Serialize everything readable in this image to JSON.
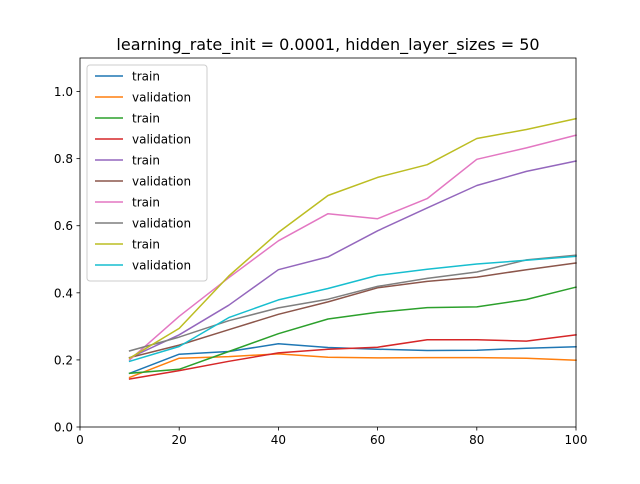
{
  "chart_data": {
    "type": "line",
    "title": "learning_rate_init = 0.0001, hidden_layer_sizes = 50",
    "xlabel": "",
    "ylabel": "",
    "xlim": [
      0,
      100
    ],
    "ylim": [
      0,
      1.1
    ],
    "xticks": [
      0,
      20,
      40,
      60,
      80,
      100
    ],
    "xtick_labels": [
      "0",
      "20",
      "40",
      "60",
      "80",
      "100"
    ],
    "yticks": [
      0.0,
      0.2,
      0.4,
      0.6,
      0.8,
      1.0
    ],
    "ytick_labels": [
      "0.0",
      "0.2",
      "0.4",
      "0.6",
      "0.8",
      "1.0"
    ],
    "grid": false,
    "legend_position": "top-left",
    "x": [
      10,
      20,
      30,
      40,
      50,
      60,
      70,
      80,
      90,
      100
    ],
    "series": [
      {
        "name": "train",
        "color": "#1f77b4",
        "values": [
          0.16,
          0.217,
          0.225,
          0.248,
          0.237,
          0.232,
          0.228,
          0.229,
          0.235,
          0.239
        ]
      },
      {
        "name": "validation",
        "color": "#ff7f0e",
        "values": [
          0.148,
          0.205,
          0.21,
          0.218,
          0.208,
          0.206,
          0.207,
          0.207,
          0.205,
          0.199
        ]
      },
      {
        "name": "train",
        "color": "#2ca02c",
        "values": [
          0.16,
          0.172,
          0.225,
          0.278,
          0.322,
          0.342,
          0.356,
          0.358,
          0.38,
          0.417
        ]
      },
      {
        "name": "validation",
        "color": "#d62728",
        "values": [
          0.143,
          0.168,
          0.196,
          0.221,
          0.232,
          0.238,
          0.26,
          0.26,
          0.256,
          0.275
        ]
      },
      {
        "name": "train",
        "color": "#9467bd",
        "values": [
          0.206,
          0.275,
          0.363,
          0.469,
          0.507,
          0.585,
          0.653,
          0.72,
          0.762,
          0.793
        ]
      },
      {
        "name": "validation",
        "color": "#8c564b",
        "values": [
          0.207,
          0.244,
          0.29,
          0.336,
          0.373,
          0.415,
          0.434,
          0.447,
          0.469,
          0.489
        ]
      },
      {
        "name": "train",
        "color": "#e377c2",
        "values": [
          0.2,
          0.33,
          0.445,
          0.555,
          0.636,
          0.621,
          0.681,
          0.798,
          0.832,
          0.87
        ]
      },
      {
        "name": "validation",
        "color": "#7f7f7f",
        "values": [
          0.227,
          0.268,
          0.317,
          0.355,
          0.381,
          0.419,
          0.443,
          0.462,
          0.498,
          0.512
        ]
      },
      {
        "name": "train",
        "color": "#bcbd22",
        "values": [
          0.205,
          0.294,
          0.45,
          0.58,
          0.69,
          0.744,
          0.782,
          0.86,
          0.887,
          0.919
        ]
      },
      {
        "name": "validation",
        "color": "#17becf",
        "values": [
          0.196,
          0.24,
          0.326,
          0.379,
          0.413,
          0.452,
          0.47,
          0.486,
          0.497,
          0.509
        ]
      }
    ]
  }
}
